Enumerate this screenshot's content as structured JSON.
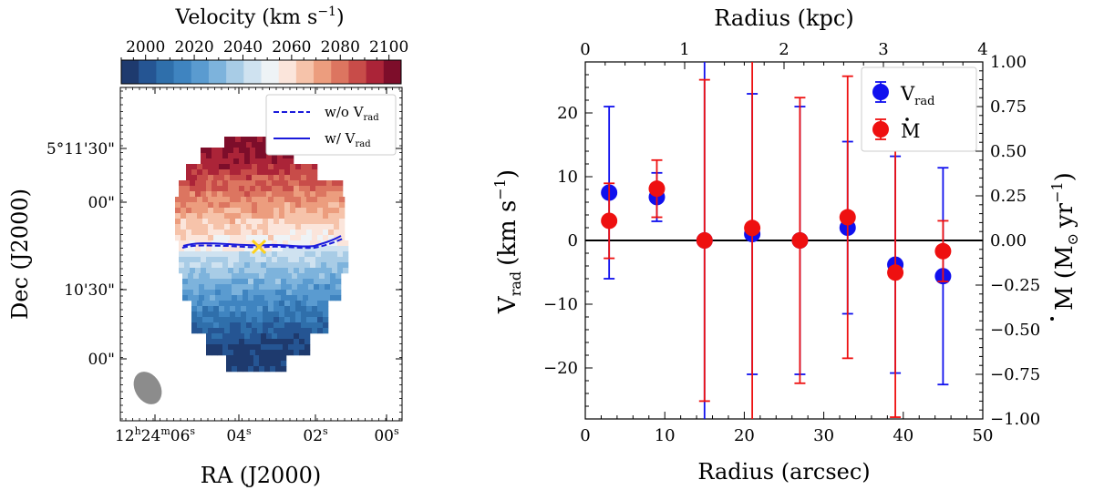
{
  "colorbar": {
    "title": "Velocity (km s",
    "title_exp": "−1",
    "title_close": ")",
    "ticks": [
      "2000",
      "2020",
      "2040",
      "2060",
      "2080",
      "2100"
    ],
    "range": [
      1990,
      2105
    ],
    "colors": [
      "#1e3a6e",
      "#255593",
      "#2f6fab",
      "#3f84c0",
      "#5a9bd0",
      "#7db3dc",
      "#a8cce6",
      "#cfe2f0",
      "#eef3f6",
      "#fbe5db",
      "#f6c3aa",
      "#ec9d7e",
      "#dc7560",
      "#c84c49",
      "#ab2438",
      "#7d0d2a"
    ]
  },
  "velocity_map": {
    "legend": [
      {
        "label": "w/o V",
        "sub": "rad",
        "style": "dashed"
      },
      {
        "label": "w/ V",
        "sub": "rad",
        "style": "solid"
      }
    ],
    "xlabel": "RA (J2000)",
    "ylabel": "Dec (J2000)",
    "yticks": [
      "5°11'30\"",
      "00\"",
      "10'30\"",
      "00\""
    ],
    "xticks": [
      {
        "h": "12",
        "hu": "h",
        "m": "24",
        "mu": "m",
        "s": "06",
        "su": "s"
      },
      {
        "s": "04",
        "su": "s"
      },
      {
        "s": "02",
        "su": "s"
      },
      {
        "s": "00",
        "su": "s"
      }
    ],
    "center_marker": "x",
    "colors": {
      "contour": "#1a1adb",
      "center": "#ffd21a",
      "beam": "#8c8c8c"
    }
  },
  "chart_data": {
    "type": "scatter",
    "title": "",
    "xlabel": "Radius (arcsec)",
    "top_xlabel": "Radius (kpc)",
    "ylabel": "V",
    "ylabel_sub": "rad",
    "ylabel_units": "(km s",
    "ylabel_exp": "−1",
    "ylabel_close": ")",
    "y2label": "M",
    "y2label_units": "(M",
    "y2label_yr": "yr",
    "y2label_exp": "−1",
    "y2label_close": ")",
    "xlim": [
      0,
      50
    ],
    "ylim": [
      -28,
      28
    ],
    "y2lim": [
      -1.0,
      1.0
    ],
    "top_xlim": [
      0,
      4
    ],
    "xticks": [
      "0",
      "10",
      "20",
      "30",
      "40",
      "50"
    ],
    "yticks": [
      "−20",
      "−10",
      "0",
      "10",
      "20"
    ],
    "y2ticks": [
      "−1.00",
      "−0.75",
      "−0.50",
      "−0.25",
      "0.00",
      "0.25",
      "0.50",
      "0.75",
      "1.00"
    ],
    "top_xticks": [
      "0",
      "1",
      "2",
      "3",
      "4"
    ],
    "legend_position": "top-right",
    "series": [
      {
        "name": "V",
        "sub": "rad",
        "color": "#1010ee",
        "axis": "left",
        "x": [
          3,
          9,
          15,
          21,
          27,
          33,
          39,
          45
        ],
        "y": [
          7.5,
          6.8,
          0.0,
          1.0,
          0.0,
          2.0,
          -3.8,
          -5.6
        ],
        "err": [
          13.5,
          3.8,
          35,
          22,
          21,
          13.5,
          17,
          17
        ]
      },
      {
        "name": "M",
        "dot": true,
        "color": "#ee1010",
        "axis": "right",
        "x": [
          3,
          9,
          15,
          21,
          27,
          33,
          39,
          45
        ],
        "y": [
          0.11,
          0.29,
          0.0,
          0.07,
          0.0,
          0.13,
          -0.18,
          -0.06
        ],
        "err": [
          0.21,
          0.16,
          0.9,
          1.6,
          0.8,
          0.79,
          0.81,
          0.17
        ]
      }
    ],
    "zero_line": 0
  }
}
